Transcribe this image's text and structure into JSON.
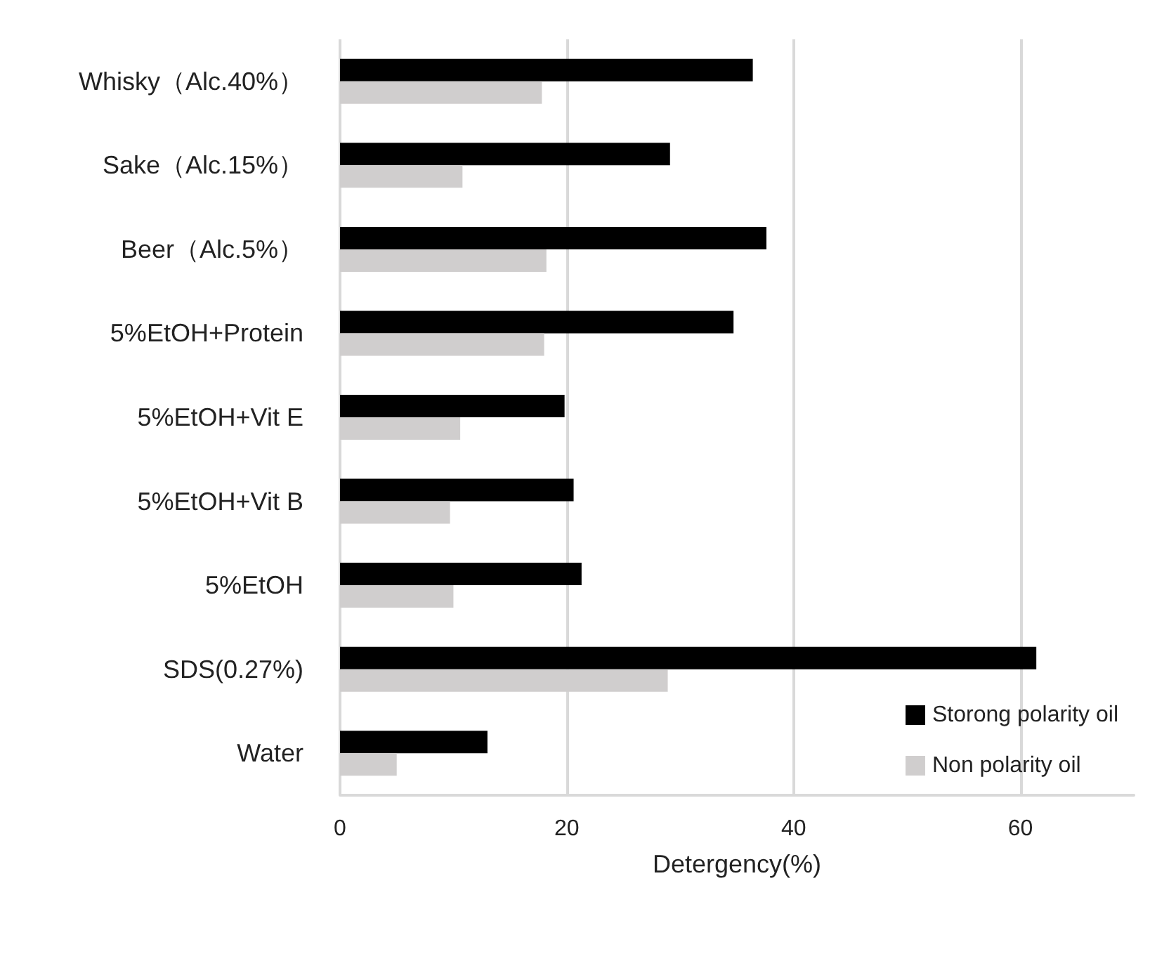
{
  "chart_data": {
    "type": "bar",
    "orientation": "horizontal",
    "xlabel": "Detergency(%)",
    "categories": [
      "Whisky（Alc.40%）",
      "Sake（Alc.15%）",
      "Beer（Alc.5%）",
      "5%EtOH+Protein",
      "5%EtOH+Vit E",
      "5%EtOH+Vit B",
      "5%EtOH",
      "SDS(0.27%)",
      "Water"
    ],
    "series": [
      {
        "name": "Storong polarity oil",
        "color": "#000000",
        "values": [
          36.4,
          29.1,
          37.6,
          34.7,
          19.8,
          20.6,
          21.3,
          61.4,
          13.0
        ]
      },
      {
        "name": "Non polarity oil",
        "color": "#d0cece",
        "values": [
          17.8,
          10.8,
          18.2,
          18.0,
          10.6,
          9.7,
          10.0,
          28.9,
          5.0
        ]
      }
    ],
    "xlim": [
      0,
      70
    ],
    "xticks": [
      0,
      20,
      40,
      60
    ],
    "grid": "x",
    "legend": "bottom right"
  }
}
